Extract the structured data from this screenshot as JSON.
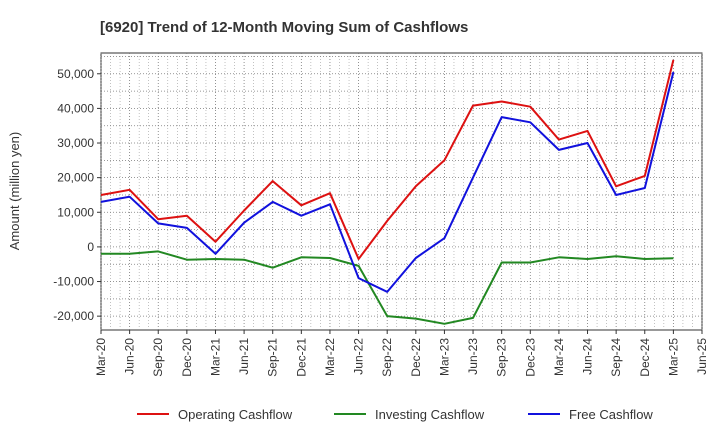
{
  "chart_data": {
    "type": "line",
    "title": "[6920]  Trend of 12-Month Moving Sum of Cashflows",
    "xlabel": "",
    "ylabel": "Amount (million yen)",
    "ylim": [
      -24000,
      56000
    ],
    "yticks": [
      -20000,
      -10000,
      0,
      10000,
      20000,
      30000,
      40000,
      50000
    ],
    "ytick_labels": [
      "-20,000",
      "-10,000",
      "0",
      "10,000",
      "20,000",
      "30,000",
      "40,000",
      "50,000"
    ],
    "x_tick_labels": [
      "Mar-20",
      "Jun-20",
      "Sep-20",
      "Dec-20",
      "Mar-21",
      "Jun-21",
      "Sep-21",
      "Dec-21",
      "Mar-22",
      "Jun-22",
      "Sep-22",
      "Dec-22",
      "Mar-23",
      "Jun-23",
      "Sep-23",
      "Dec-23",
      "Mar-24",
      "Jun-24",
      "Sep-24",
      "Dec-24",
      "Mar-25",
      "Jun-25"
    ],
    "categories": [
      "Mar-20",
      "Jun-20",
      "Sep-20",
      "Dec-20",
      "Mar-21",
      "Jun-21",
      "Sep-21",
      "Dec-21",
      "Mar-22",
      "Jun-22",
      "Sep-22",
      "Dec-22",
      "Mar-23",
      "Jun-23",
      "Sep-23",
      "Dec-23",
      "Mar-24",
      "Jun-24",
      "Sep-24",
      "Dec-24",
      "Mar-25"
    ],
    "grid": true,
    "legend_position": "bottom",
    "series": [
      {
        "name": "Operating Cashflow",
        "color": "#dd1111",
        "values": [
          15000,
          16500,
          8000,
          9000,
          1500,
          10500,
          19000,
          12000,
          15500,
          -3500,
          7500,
          17500,
          25000,
          40800,
          42000,
          40500,
          31000,
          33500,
          17500,
          20500,
          54000
        ]
      },
      {
        "name": "Investing Cashflow",
        "color": "#228822",
        "values": [
          -2000,
          -2000,
          -1300,
          -3700,
          -3500,
          -3700,
          -6000,
          -3000,
          -3200,
          -5500,
          -20000,
          -20700,
          -22200,
          -20500,
          -4500,
          -4500,
          -3000,
          -3500,
          -2700,
          -3500,
          -3300
        ]
      },
      {
        "name": "Free Cashflow",
        "color": "#1111dd",
        "values": [
          13000,
          14500,
          6800,
          5500,
          -2000,
          7000,
          13000,
          9000,
          12300,
          -9000,
          -13000,
          -3200,
          2500,
          20000,
          37500,
          36000,
          28000,
          30000,
          15000,
          17000,
          50500
        ]
      }
    ]
  }
}
